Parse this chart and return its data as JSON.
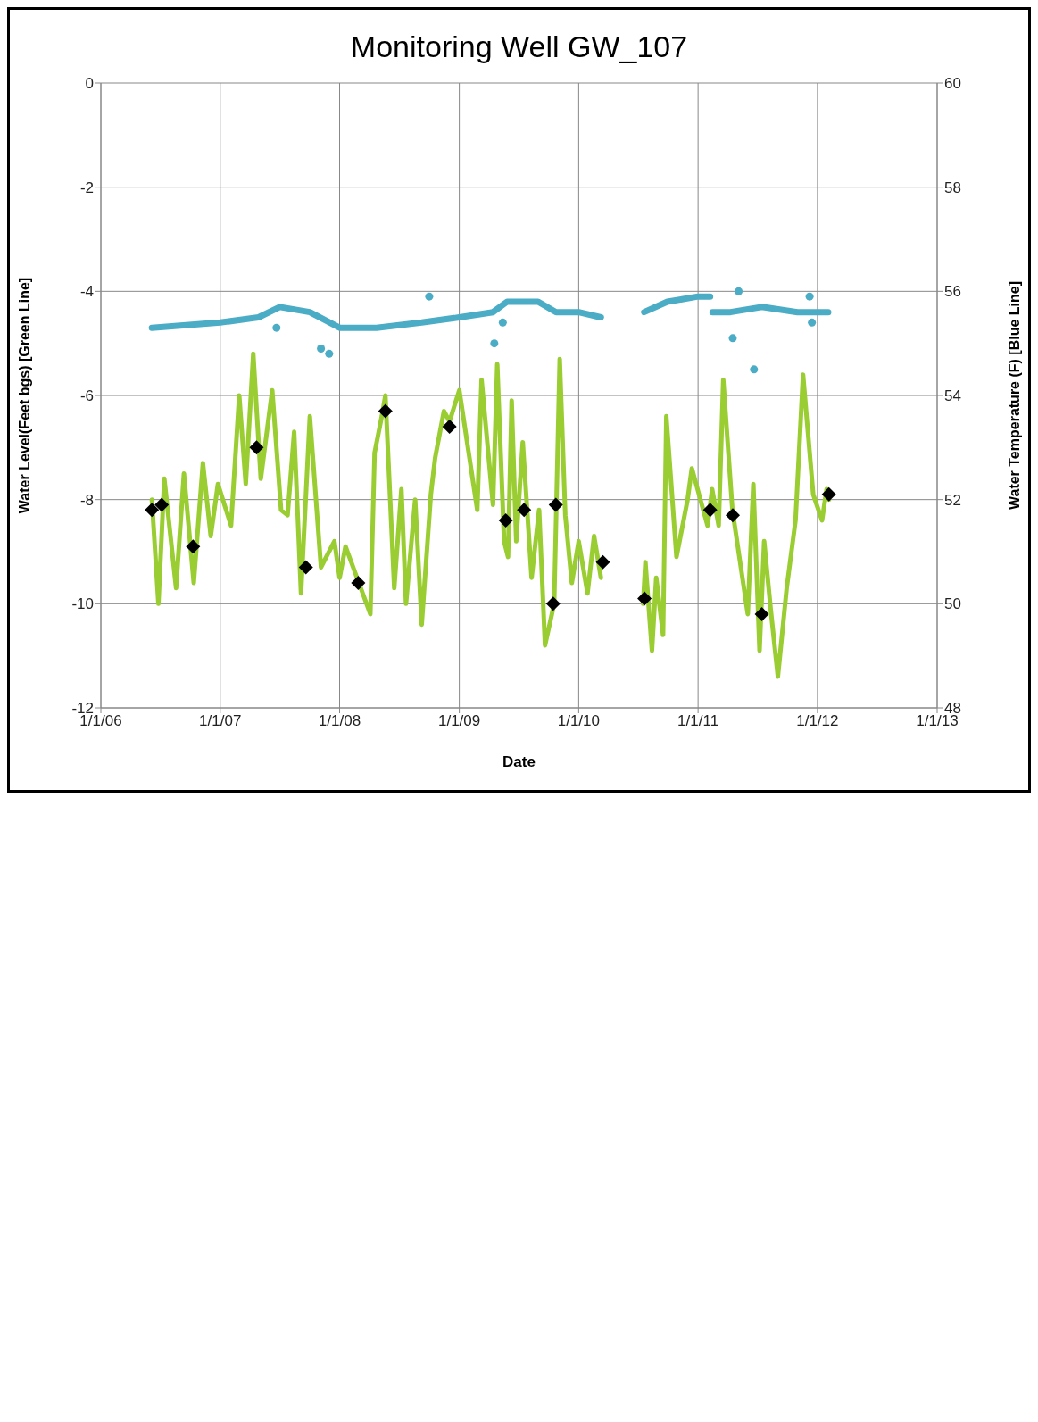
{
  "chart_data": {
    "type": "line",
    "title": "Monitoring Well GW_107",
    "xlabel": "Date",
    "ylabel": "Water Level(Feet bgs) [Green Line]",
    "y2label": "Water Temperature (F) [Blue Line]",
    "xlim": [
      "2006-01-01",
      "2013-01-01"
    ],
    "xticks": [
      {
        "value": "2006-01-01",
        "label": "1/1/06"
      },
      {
        "value": "2007-01-01",
        "label": "1/1/07"
      },
      {
        "value": "2008-01-01",
        "label": "1/1/08"
      },
      {
        "value": "2009-01-01",
        "label": "1/1/09"
      },
      {
        "value": "2010-01-01",
        "label": "1/1/10"
      },
      {
        "value": "2011-01-01",
        "label": "1/1/11"
      },
      {
        "value": "2012-01-01",
        "label": "1/1/12"
      },
      {
        "value": "2013-01-01",
        "label": "1/1/13"
      }
    ],
    "ylim": [
      -12,
      0
    ],
    "yticks": [
      -12,
      -10,
      -8,
      -6,
      -4,
      -2,
      0
    ],
    "y2lim": [
      48,
      60
    ],
    "y2ticks": [
      48,
      50,
      52,
      54,
      56,
      58,
      60
    ],
    "grid": true,
    "series": [
      {
        "axis": "y",
        "color": "#9acd32",
        "marker": "none",
        "x": [
          "2006-06-06",
          "2006-06-26",
          "2006-07-14",
          "2006-08-19",
          "2006-09-12",
          "2006-10-12",
          "2006-11-09",
          "2006-12-03",
          "2006-12-25",
          "2007-02-03",
          "2007-02-28",
          "2007-03-20",
          "2007-04-12",
          "2007-05-05",
          "2007-06-09",
          "2007-07-06",
          "2007-07-26",
          "2007-08-15",
          "2007-09-05",
          "2007-10-02",
          "2007-11-05",
          "2007-12-16",
          "2008-01-01",
          "2008-01-19",
          "2008-02-29",
          "2008-04-04",
          "2008-04-17",
          "2008-05-09",
          "2008-05-20",
          "2008-06-16",
          "2008-07-08",
          "2008-07-22",
          "2008-08-19",
          "2008-09-08",
          "2008-10-06",
          "2008-10-19",
          "2008-11-15",
          "2008-12-02",
          "2009-01-01",
          "2009-02-25",
          "2009-03-10",
          "2009-04-14",
          "2009-04-27",
          "2009-05-18",
          "2009-05-30",
          "2009-06-10",
          "2009-06-24",
          "2009-07-14",
          "2009-08-10",
          "2009-09-02",
          "2009-09-20",
          "2009-10-18",
          "2009-11-04",
          "2009-11-21",
          "2009-12-11",
          "2010-01-01",
          "2010-01-28",
          "2010-02-17",
          "2010-03-10",
          "2010-05-01",
          "2010-07-17",
          "2010-07-24",
          "2010-08-13",
          "2010-08-26",
          "2010-09-16",
          "2010-09-26",
          "2010-10-27",
          "2010-11-30",
          "2010-12-13",
          "2011-01-30",
          "2011-02-13",
          "2011-03-05",
          "2011-03-19",
          "2011-04-16",
          "2011-06-02",
          "2011-06-19",
          "2011-07-08",
          "2011-07-22",
          "2011-08-11",
          "2011-09-02",
          "2011-09-29",
          "2011-10-26",
          "2011-11-18",
          "2011-12-19",
          "2012-01-15",
          "2012-01-29",
          "2012-02-05"
        ],
        "values": [
          -8.0,
          -10.0,
          -7.6,
          -9.7,
          -7.5,
          -9.6,
          -7.3,
          -8.7,
          -7.7,
          -8.5,
          -6.0,
          -7.7,
          -5.2,
          -7.6,
          -5.9,
          -8.2,
          -8.3,
          -6.7,
          -9.8,
          -6.4,
          -9.3,
          -8.8,
          -9.5,
          -8.9,
          -9.6,
          -10.2,
          -7.1,
          -6.4,
          -6.0,
          -9.7,
          -7.8,
          -10.0,
          -8.0,
          -10.4,
          -7.9,
          -7.2,
          -6.3,
          -6.5,
          -5.9,
          -8.2,
          -5.7,
          -8.1,
          -5.4,
          -8.8,
          -9.1,
          -6.1,
          -8.8,
          -6.9,
          -9.5,
          -8.2,
          -10.8,
          -10.0,
          -5.3,
          -8.3,
          -9.6,
          -8.8,
          -9.8,
          -8.7,
          -9.5,
          null,
          -10.0,
          -9.2,
          -10.9,
          -9.5,
          -10.6,
          -6.4,
          -9.1,
          -8.0,
          -7.4,
          -8.5,
          -7.8,
          -8.5,
          -5.7,
          -8.2,
          -10.2,
          -7.7,
          -10.9,
          -8.8,
          -10.1,
          -11.4,
          -9.7,
          -8.4,
          -5.6,
          -7.9,
          -8.4,
          -7.8,
          -8.0
        ]
      },
      {
        "axis": "y2",
        "color": "#4bacc6",
        "marker": "none",
        "x": [
          "2006-06-06",
          "2007-01-01",
          "2007-04-28",
          "2007-07-02",
          "2007-10-02",
          "2008-01-01",
          "2008-04-23",
          "2008-09-08",
          "2009-01-01",
          "2009-04-14",
          "2009-05-27",
          "2009-08-30",
          "2009-10-24",
          "2010-01-01",
          "2010-03-10",
          "2010-05-01",
          "2010-07-20",
          "2010-09-29",
          "2011-01-01",
          "2011-02-07",
          "2011-02-10",
          "2011-02-14",
          "2011-04-10",
          "2011-07-15",
          "2011-11-01",
          "2012-02-03"
        ],
        "values": [
          55.3,
          55.4,
          55.5,
          55.7,
          55.6,
          55.3,
          55.3,
          55.4,
          55.5,
          55.6,
          55.8,
          55.8,
          55.6,
          55.6,
          55.5,
          null,
          55.6,
          55.8,
          55.9,
          55.9,
          null,
          55.6,
          55.6,
          55.7,
          55.6,
          55.6
        ]
      },
      {
        "type": "scatter",
        "axis": "y2",
        "color": "#4bacc6",
        "marker": "circle",
        "x": [
          "2007-06-22",
          "2007-11-05",
          "2007-11-30",
          "2008-10-01",
          "2009-04-18",
          "2009-05-14",
          "2011-04-17",
          "2011-05-05",
          "2011-06-21",
          "2011-12-08",
          "2011-12-15"
        ],
        "values": [
          55.3,
          54.9,
          54.8,
          55.9,
          55.0,
          55.4,
          55.1,
          56.0,
          54.5,
          55.9,
          55.4
        ]
      },
      {
        "type": "scatter",
        "axis": "y",
        "color": "#000000",
        "marker": "diamond",
        "x": [
          "2006-06-06",
          "2006-07-06",
          "2006-10-10",
          "2007-04-22",
          "2007-09-20",
          "2008-02-27",
          "2008-05-20",
          "2008-12-02",
          "2009-05-23",
          "2009-07-18",
          "2009-10-15",
          "2009-10-23",
          "2010-03-16",
          "2010-07-21",
          "2011-02-07",
          "2011-04-17",
          "2011-07-15",
          "2012-02-05"
        ],
        "values": [
          -8.2,
          -8.1,
          -8.9,
          -7.0,
          -9.3,
          -9.6,
          -6.3,
          -6.6,
          -8.4,
          -8.2,
          -10.0,
          -8.1,
          -9.2,
          -9.9,
          -8.2,
          -8.3,
          -10.2,
          -7.9
        ]
      }
    ]
  }
}
